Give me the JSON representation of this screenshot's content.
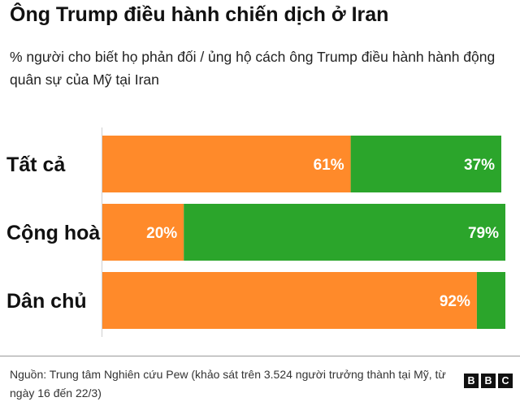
{
  "title": "Ông Trump điều hành chiến dịch ở Iran",
  "subtitle": "% người cho biết họ phản đối / ủng hộ cách ông Trump điều hành hành động quân sự của Mỹ tại Iran",
  "chart_data": {
    "type": "bar",
    "orientation": "horizontal",
    "stacked": true,
    "categories": [
      "Tất cả",
      "Cộng hoà",
      "Dân chủ"
    ],
    "series": [
      {
        "color": "#ff8a2a",
        "values": [
          61,
          20,
          92
        ],
        "data_labels": [
          "61%",
          "20%",
          "92%"
        ]
      },
      {
        "color": "#2ba52b",
        "values": [
          37,
          79,
          7
        ],
        "data_labels": [
          "37%",
          "79%",
          ""
        ]
      }
    ],
    "xlim": [
      0,
      100
    ],
    "grid": false,
    "legend": "none"
  },
  "footer": {
    "source": "Nguồn: Trung tâm Nghiên cứu Pew (khảo sát trên 3.524 người trưởng thành tại Mỹ, từ ngày 16 đến 22/3)",
    "logo_letters": [
      "B",
      "B",
      "C"
    ]
  }
}
